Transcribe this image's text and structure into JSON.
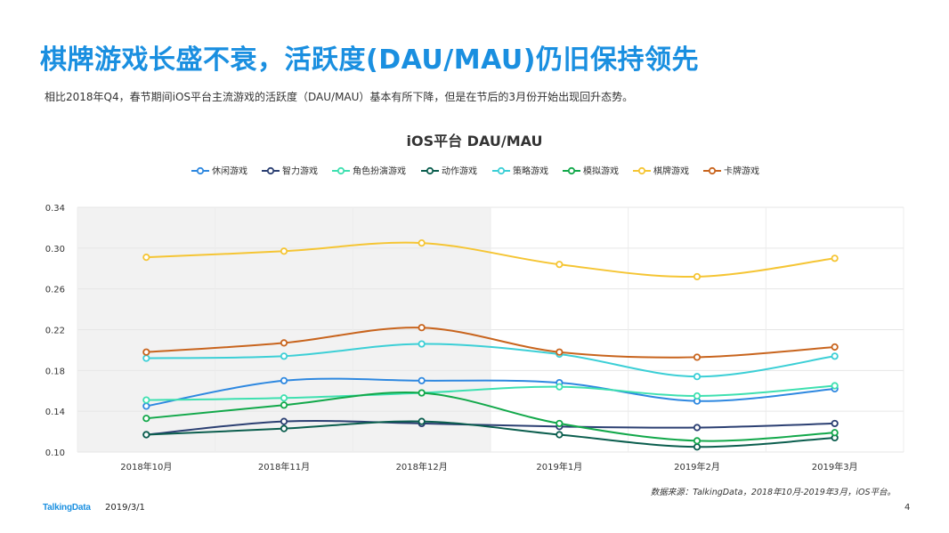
{
  "header": {
    "title": "棋牌游戏长盛不衰，活跃度(DAU/MAU)仍旧保持领先",
    "subtitle": "相比2018年Q4，春节期间iOS平台主流游戏的活跃度（DAU/MAU）基本有所下降，但是在节后的3月份开始出现回升态势。"
  },
  "footer": {
    "source": "数据来源：TalkingData，2018年10月-2019年3月，iOS平台。",
    "logo": "TalkingData",
    "date": "2019/3/1",
    "page": "4"
  },
  "chart_data": {
    "type": "line",
    "title": "iOS平台  DAU/MAU",
    "categories": [
      "2018年10月",
      "2018年11月",
      "2018年12月",
      "2019年1月",
      "2019年2月",
      "2019年3月"
    ],
    "ylim": [
      0.1,
      0.34
    ],
    "yticks": [
      "0.10",
      "0.14",
      "0.18",
      "0.22",
      "0.26",
      "0.30",
      "0.34"
    ],
    "grid": true,
    "legend_position": "top",
    "highlight_range": [
      "2018年10月",
      "2018年12月"
    ],
    "series": [
      {
        "name": "休闲游戏",
        "color": "#2e88e0",
        "values": [
          0.145,
          0.17,
          0.17,
          0.168,
          0.15,
          0.162
        ]
      },
      {
        "name": "智力游戏",
        "color": "#2b3f72",
        "values": [
          0.117,
          0.13,
          0.128,
          0.125,
          0.124,
          0.128
        ]
      },
      {
        "name": "角色扮演游戏",
        "color": "#3ee0b0",
        "values": [
          0.151,
          0.153,
          0.158,
          0.164,
          0.155,
          0.165
        ]
      },
      {
        "name": "动作游戏",
        "color": "#0b5e4e",
        "values": [
          0.117,
          0.123,
          0.13,
          0.117,
          0.105,
          0.114
        ]
      },
      {
        "name": "策略游戏",
        "color": "#3ccfd6",
        "values": [
          0.192,
          0.194,
          0.206,
          0.196,
          0.174,
          0.194
        ]
      },
      {
        "name": "模拟游戏",
        "color": "#12a84a",
        "values": [
          0.133,
          0.146,
          0.158,
          0.128,
          0.111,
          0.119
        ]
      },
      {
        "name": "棋牌游戏",
        "color": "#f5c534",
        "values": [
          0.291,
          0.297,
          0.305,
          0.284,
          0.272,
          0.29
        ]
      },
      {
        "name": "卡牌游戏",
        "color": "#c8641d",
        "values": [
          0.198,
          0.207,
          0.222,
          0.198,
          0.193,
          0.203
        ]
      }
    ]
  }
}
